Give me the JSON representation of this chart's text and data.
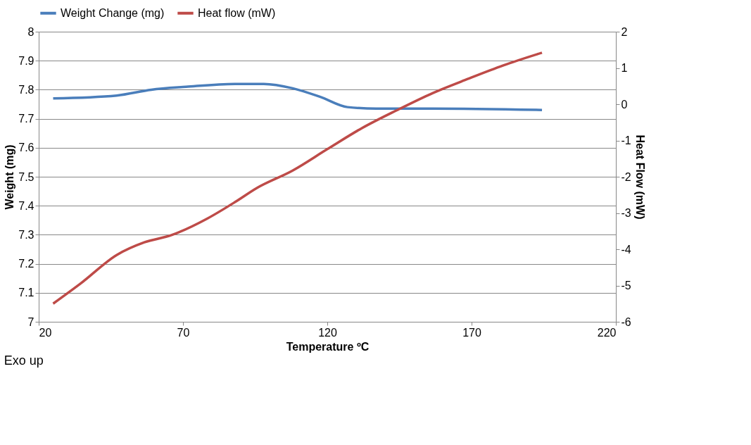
{
  "chart_data": {
    "type": "line",
    "xlabel": "Temperature ºC",
    "ylabel": "Weight (mg)",
    "y2label": "Heat Flow (mW)",
    "xlim": [
      20,
      220
    ],
    "xticks": [
      20,
      70,
      120,
      170,
      220
    ],
    "ylim": [
      7,
      8
    ],
    "yticks": [
      7,
      7.1,
      7.2,
      7.3,
      7.4,
      7.5,
      7.6,
      7.7,
      7.8,
      7.9,
      8
    ],
    "y2lim": [
      -6,
      2
    ],
    "y2ticks": [
      -6,
      -5,
      -4,
      -3,
      -2,
      -1,
      0,
      1,
      2
    ],
    "grid": "y",
    "legend": "top",
    "line_style": "solid",
    "annotations": [
      "Exo up"
    ],
    "series": [
      {
        "name": "Weight Change (mg)",
        "color": "#4a7ebb",
        "x": [
          25,
          47,
          59,
          71,
          88,
          98,
          108,
          117.6,
          127,
          137,
          156.6,
          194.4
        ],
        "values": [
          7.77,
          7.78,
          7.8,
          7.81,
          7.82,
          7.82,
          7.805,
          7.775,
          7.74,
          7.735,
          7.735,
          7.73
        ]
      },
      {
        "name": "Heat flow (mW)",
        "color": "#be4b48",
        "axis": "y2",
        "x": [
          25,
          34.6,
          47,
          56.6,
          66,
          78.5,
          88,
          95.6,
          108,
          120,
          132,
          144,
          156.6,
          168.8,
          181,
          194.4
        ],
        "values": [
          -5.5,
          -4.94,
          -4.16,
          -3.81,
          -3.61,
          -3.15,
          -2.7,
          -2.31,
          -1.83,
          -1.24,
          -0.66,
          -0.17,
          0.31,
          0.7,
          1.07,
          1.42
        ]
      }
    ]
  }
}
